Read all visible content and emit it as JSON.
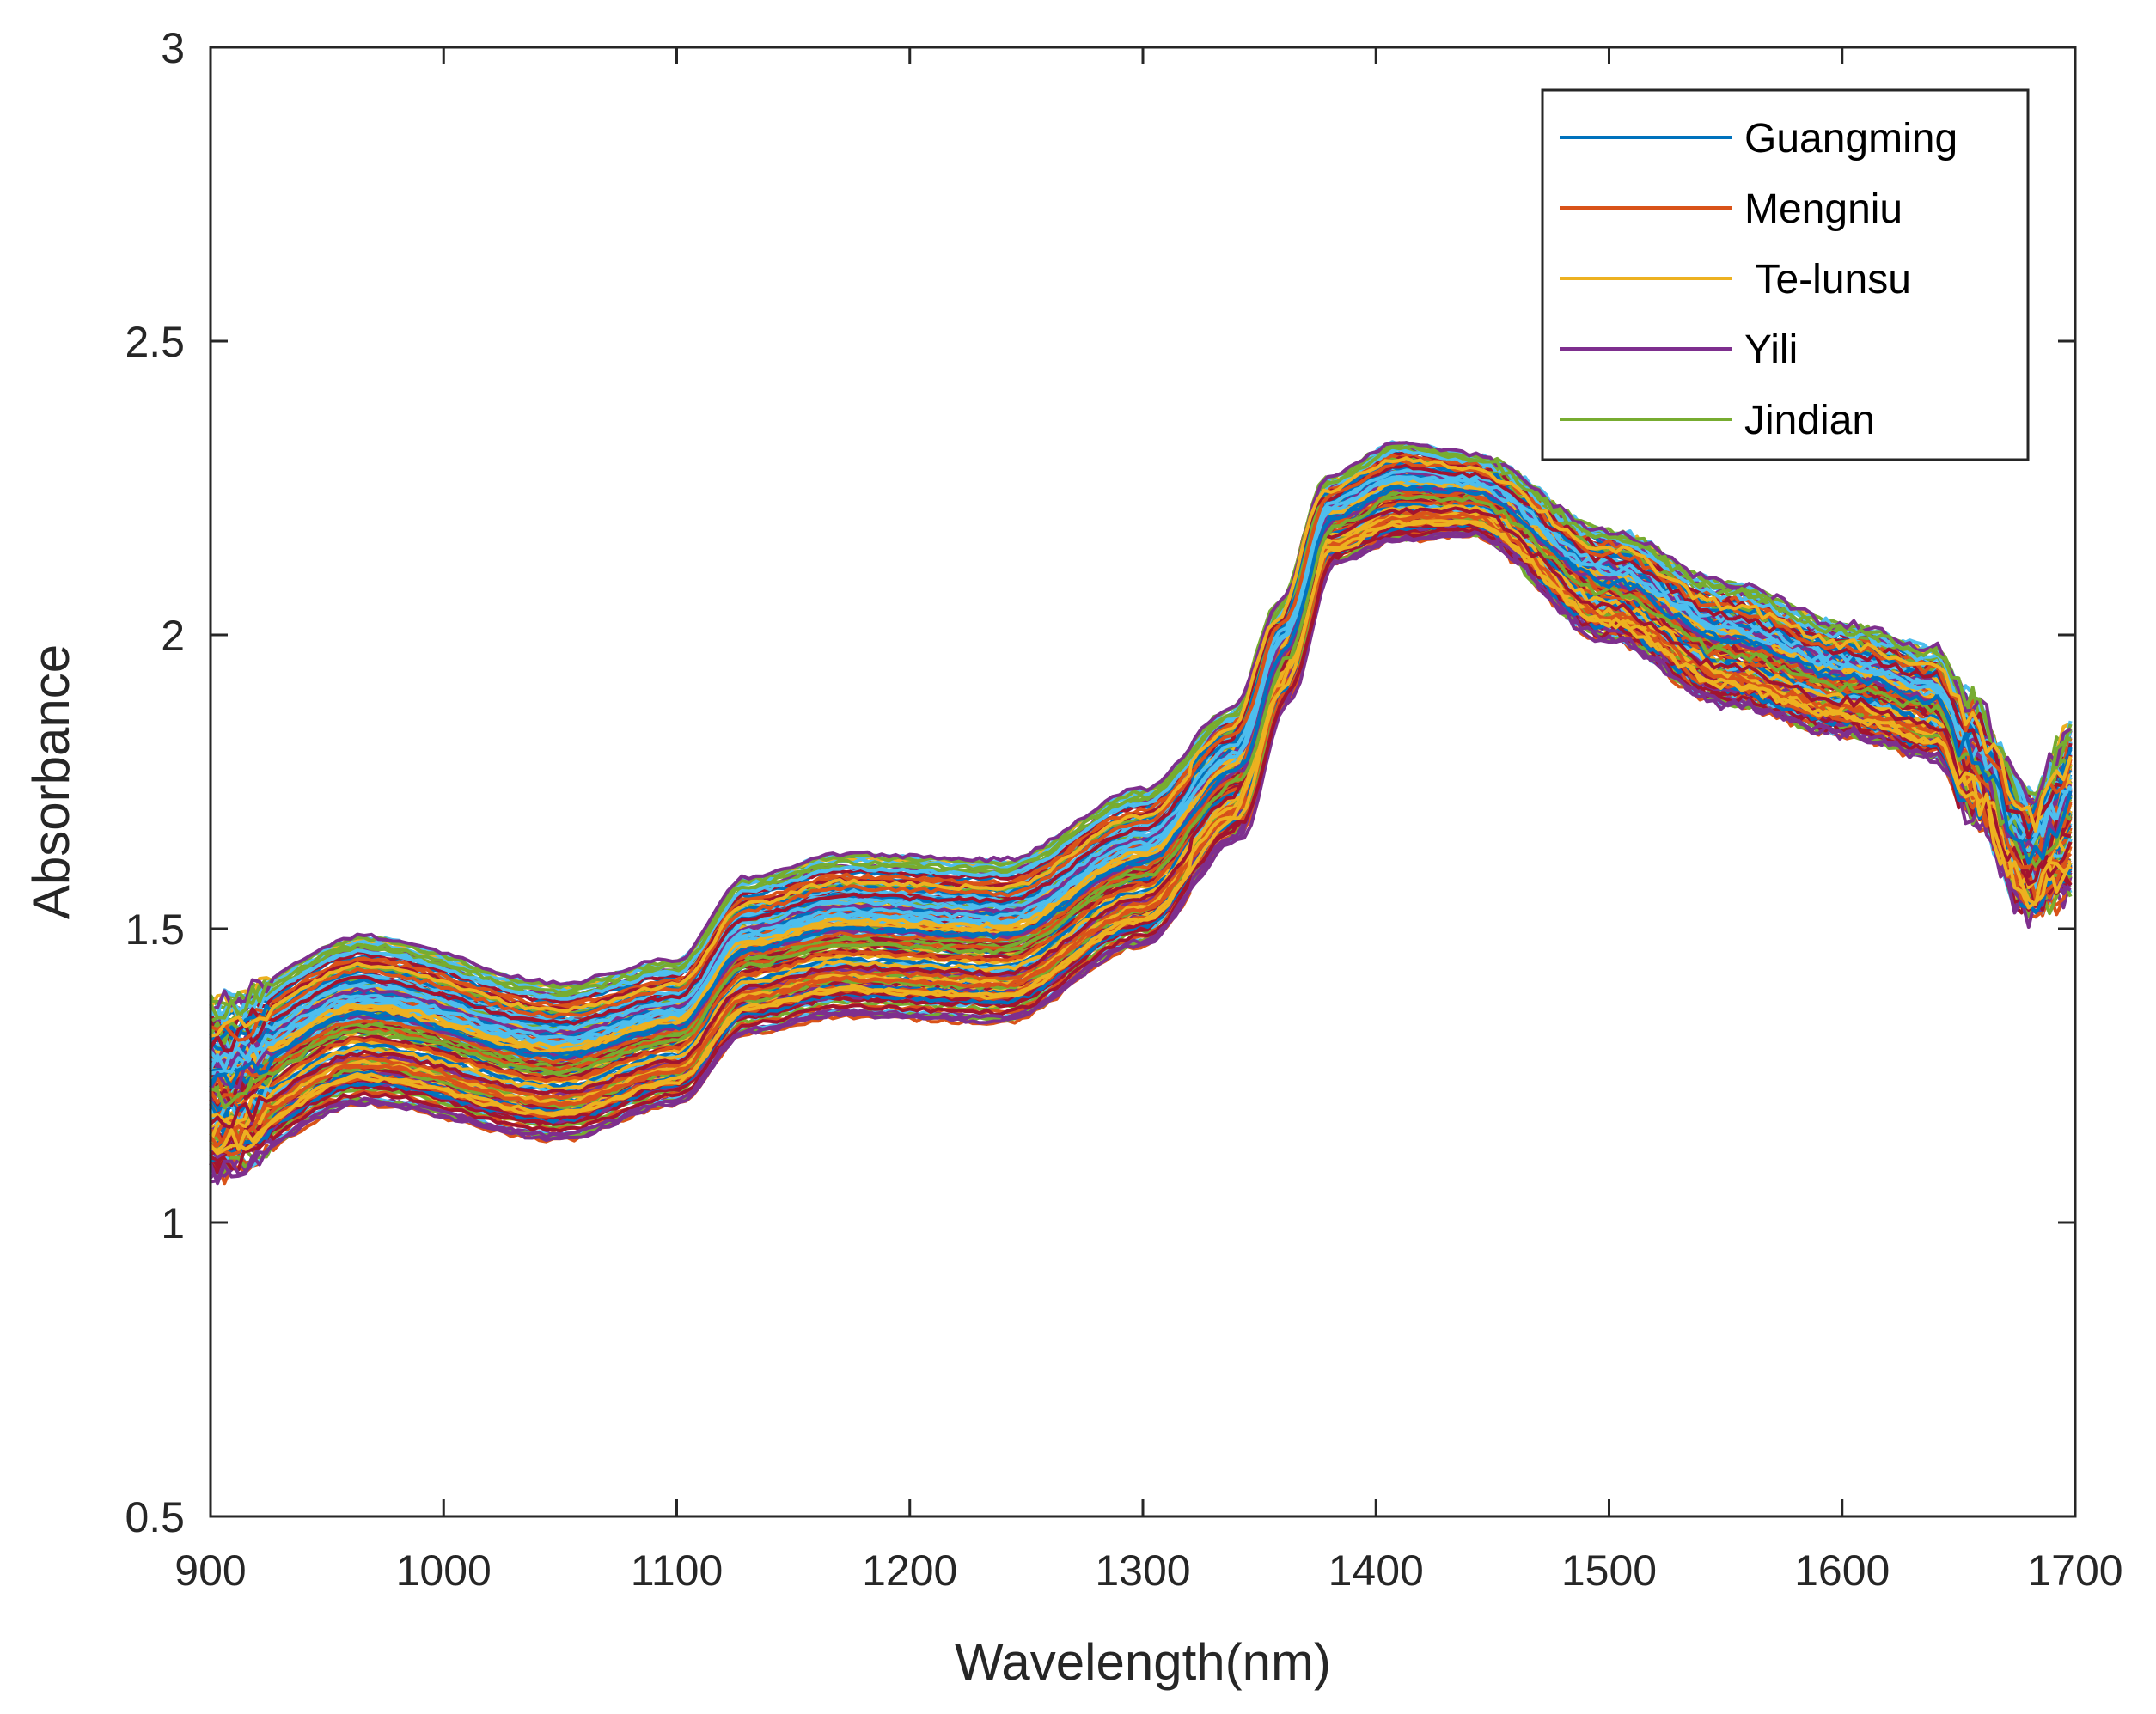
{
  "chart_data": {
    "type": "line",
    "title": "",
    "xlabel": "Wavelength(nm)",
    "ylabel": "Absorbance",
    "xlim": [
      900,
      1700
    ],
    "ylim": [
      0.5,
      3
    ],
    "xticks": [
      900,
      1000,
      1100,
      1200,
      1300,
      1400,
      1500,
      1600,
      1700
    ],
    "yticks": [
      0.5,
      1,
      1.5,
      2,
      2.5,
      3
    ],
    "xtick_labels": [
      "900",
      "1000",
      "1100",
      "1200",
      "1300",
      "1400",
      "1500",
      "1600",
      "1700"
    ],
    "ytick_labels": [
      "0.5",
      "1",
      "1.5",
      "2",
      "2.5",
      "3"
    ],
    "grid": false,
    "legend_position": "top-right",
    "legend": [
      {
        "name": "Guangming",
        "color": "#0072BD"
      },
      {
        "name": "Mengniu",
        "color": "#D95319"
      },
      {
        "name": " Te-lunsu",
        "color": "#EDB120"
      },
      {
        "name": "Yili",
        "color": "#7E2F8E"
      },
      {
        "name": "Jindian",
        "color": "#77AC30"
      }
    ],
    "extra_line_colors": [
      "#4DBEEE",
      "#A2142F"
    ],
    "spectrum_envelope": {
      "x": [
        900,
        965,
        1050,
        1100,
        1130,
        1170,
        1240,
        1300,
        1340,
        1360,
        1380,
        1410,
        1440,
        1500,
        1550,
        1600,
        1640,
        1655,
        1680,
        1700
      ],
      "upper": [
        1.38,
        1.49,
        1.41,
        1.45,
        1.59,
        1.63,
        1.62,
        1.74,
        1.88,
        2.06,
        2.27,
        2.33,
        2.31,
        2.18,
        2.09,
        2.02,
        1.98,
        1.89,
        1.72,
        1.85
      ],
      "lower": [
        1.08,
        1.2,
        1.14,
        1.2,
        1.32,
        1.35,
        1.34,
        1.47,
        1.65,
        1.88,
        2.12,
        2.16,
        2.17,
        1.99,
        1.88,
        1.83,
        1.79,
        1.7,
        1.53,
        1.56
      ]
    },
    "n_spectra": 150
  }
}
